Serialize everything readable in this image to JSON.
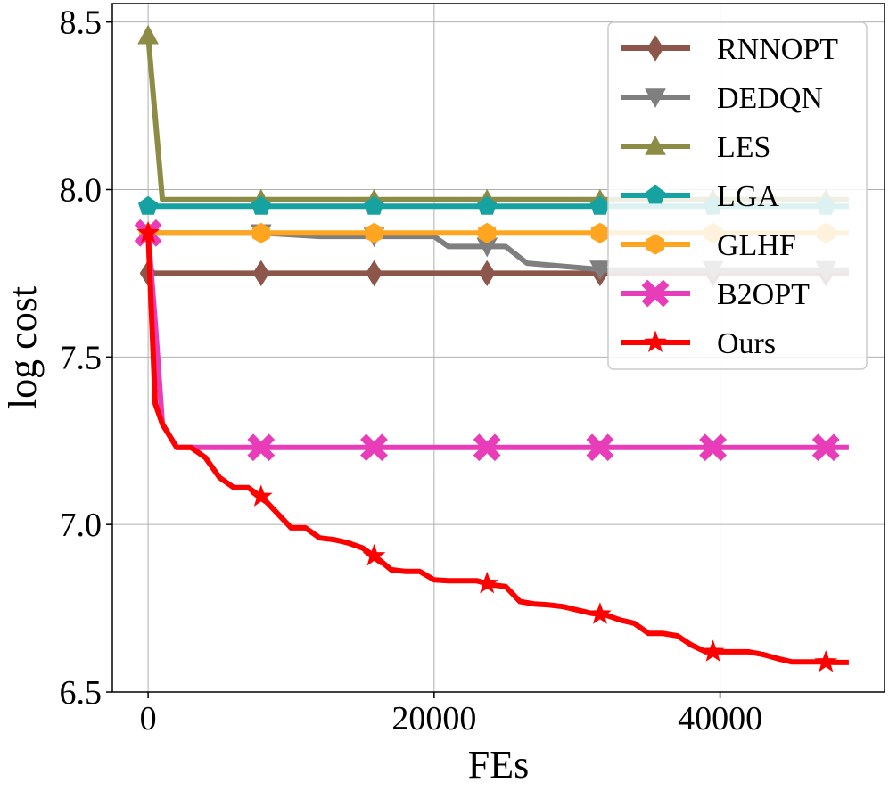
{
  "chart_data": {
    "type": "line",
    "title": "",
    "xlabel": "FEs",
    "ylabel": "log cost",
    "xlim": [
      -2500,
      51500
    ],
    "ylim": [
      6.5,
      8.555
    ],
    "xticks": [
      0,
      20000,
      40000
    ],
    "xtick_labels": [
      "0",
      "20000",
      "40000"
    ],
    "yticks": [
      6.5,
      7.0,
      7.5,
      8.0,
      8.5
    ],
    "ytick_labels": [
      "6.5",
      "7.0",
      "7.5",
      "8.0",
      "8.5"
    ],
    "grid": true,
    "legend_position": "top-right",
    "series": [
      {
        "name": "RNNOPT",
        "color": "#8c564b",
        "marker": "diamond",
        "x": [
          0,
          49000
        ],
        "y": [
          7.75,
          7.75
        ],
        "marker_x": [
          0,
          7900,
          15800,
          23700,
          31600,
          39500,
          47400
        ]
      },
      {
        "name": "DEDQN",
        "color": "#7f7f7f",
        "marker": "triangle-down",
        "x": [
          0,
          1000,
          2000,
          8000,
          12000,
          20000,
          21000,
          25000,
          26500,
          32000,
          49000
        ],
        "y": [
          7.87,
          7.87,
          7.87,
          7.87,
          7.86,
          7.86,
          7.83,
          7.83,
          7.78,
          7.76,
          7.76
        ],
        "marker_x": [
          0,
          7900,
          15800,
          23700,
          31600,
          39500,
          47400
        ]
      },
      {
        "name": "LES",
        "color": "#8c8c46",
        "marker": "triangle-up",
        "x": [
          0,
          1000,
          49000
        ],
        "y": [
          8.46,
          7.97,
          7.97
        ],
        "marker_x": [
          0,
          7900,
          15800,
          23700,
          31600,
          39500,
          47400
        ]
      },
      {
        "name": "LGA",
        "color": "#17a2a2",
        "marker": "pentagon",
        "x": [
          0,
          49000
        ],
        "y": [
          7.95,
          7.95
        ],
        "marker_x": [
          0,
          7900,
          15800,
          23700,
          31600,
          39500,
          47400
        ]
      },
      {
        "name": "GLHF",
        "color": "#ffa51f",
        "marker": "hexagon",
        "x": [
          0,
          49000
        ],
        "y": [
          7.87,
          7.87
        ],
        "marker_x": [
          0,
          7900,
          15800,
          23700,
          31600,
          39500,
          47400
        ]
      },
      {
        "name": "B2OPT",
        "color": "#e83cb9",
        "marker": "x-filled",
        "x": [
          0,
          500,
          1000,
          2000,
          49000
        ],
        "y": [
          7.87,
          7.6,
          7.3,
          7.23,
          7.23
        ],
        "marker_x": [
          0,
          7900,
          15800,
          23700,
          31600,
          39500,
          47400
        ]
      },
      {
        "name": "Ours",
        "color": "#ff0000",
        "marker": "star",
        "x": [
          0,
          500,
          1000,
          2000,
          3000,
          4000,
          5000,
          6000,
          7000,
          8000,
          10000,
          11000,
          12000,
          13000,
          14000,
          15000,
          16000,
          17000,
          18000,
          19000,
          20000,
          21000,
          22000,
          23000,
          24000,
          25000,
          26000,
          27000,
          28000,
          29000,
          30000,
          31000,
          32000,
          33000,
          34000,
          35000,
          36000,
          37000,
          38000,
          39000,
          40000,
          41000,
          42000,
          43000,
          44000,
          45000,
          46000,
          47000,
          48000,
          49000
        ],
        "y": [
          7.87,
          7.36,
          7.3,
          7.23,
          7.23,
          7.2,
          7.14,
          7.11,
          7.11,
          7.08,
          6.99,
          6.99,
          6.96,
          6.955,
          6.945,
          6.93,
          6.9,
          6.865,
          6.86,
          6.86,
          6.835,
          6.832,
          6.832,
          6.832,
          6.82,
          6.815,
          6.77,
          6.763,
          6.76,
          6.755,
          6.745,
          6.735,
          6.73,
          6.715,
          6.705,
          6.675,
          6.675,
          6.668,
          6.64,
          6.62,
          6.62,
          6.62,
          6.62,
          6.612,
          6.6,
          6.59,
          6.59,
          6.59,
          6.588,
          6.588
        ],
        "marker_x": [
          0,
          7900,
          15800,
          23700,
          31600,
          39500,
          47400
        ]
      }
    ]
  }
}
